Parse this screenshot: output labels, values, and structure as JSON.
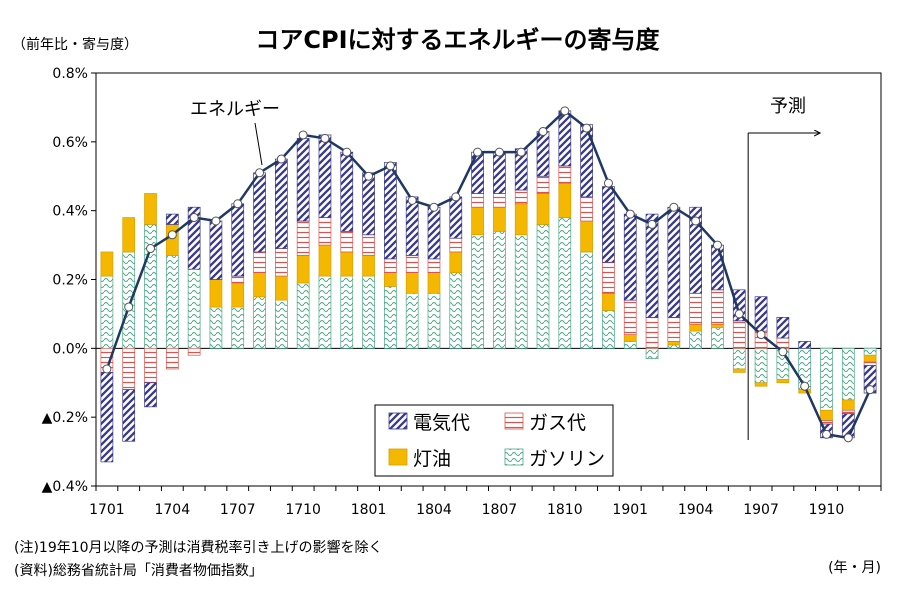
{
  "header": {
    "title": "コアCPIに対するエネルギーの寄与度",
    "y_unit": "（前年比・寄与度）"
  },
  "footer": {
    "note": "(注)19年10月以降の予測は消費税率引き上げの影響を除く",
    "source": "(資料)総務省統計局「消費者物価指数」",
    "x_unit": "(年・月)"
  },
  "chart_data": {
    "type": "bar",
    "stacked": true,
    "title": "コアCPIに対するエネルギーの寄与度",
    "ylim": [
      -0.4,
      0.8
    ],
    "y_ticks": [
      0.8,
      0.6,
      0.4,
      0.2,
      0.0,
      -0.2,
      -0.4
    ],
    "y_tick_labels": [
      "0.8%",
      "0.6%",
      "0.4%",
      "0.2%",
      "0.0%",
      "▲0.2%",
      "▲0.4%"
    ],
    "categories": [
      "1701",
      "1702",
      "1703",
      "1704",
      "1705",
      "1706",
      "1707",
      "1708",
      "1709",
      "1710",
      "1711",
      "1712",
      "1801",
      "1802",
      "1803",
      "1804",
      "1805",
      "1806",
      "1807",
      "1808",
      "1809",
      "1810",
      "1811",
      "1812",
      "1901",
      "1902",
      "1903",
      "1904",
      "1905",
      "1906",
      "1907",
      "1908",
      "1909",
      "1910",
      "1911",
      "1912"
    ],
    "x_tick_labels": [
      "1701",
      "1704",
      "1707",
      "1710",
      "1801",
      "1804",
      "1807",
      "1810",
      "1901",
      "1904",
      "1907",
      "1910"
    ],
    "x_tick_indices": [
      0,
      3,
      6,
      9,
      12,
      15,
      18,
      21,
      24,
      27,
      30,
      33
    ],
    "series": [
      {
        "name": "ガソリン",
        "color": "#8fd4b6",
        "pattern": "wave",
        "values": [
          0.21,
          0.28,
          0.36,
          0.27,
          0.23,
          0.12,
          0.12,
          0.15,
          0.14,
          0.19,
          0.21,
          0.21,
          0.21,
          0.18,
          0.16,
          0.16,
          0.22,
          0.33,
          0.34,
          0.33,
          0.36,
          0.38,
          0.28,
          0.11,
          0.02,
          -0.03,
          0.01,
          0.05,
          0.06,
          -0.06,
          -0.1,
          -0.09,
          -0.12,
          -0.18,
          -0.15,
          -0.02
        ]
      },
      {
        "name": "灯油",
        "color": "#f5b800",
        "pattern": "solid",
        "values": [
          0.07,
          0.1,
          0.09,
          0.09,
          0.0,
          0.08,
          0.07,
          0.07,
          0.07,
          0.08,
          0.09,
          0.07,
          0.06,
          0.04,
          0.06,
          0.06,
          0.06,
          0.08,
          0.07,
          0.09,
          0.09,
          0.1,
          0.09,
          0.05,
          0.02,
          0.0,
          0.01,
          0.02,
          0.01,
          -0.01,
          -0.01,
          -0.01,
          -0.01,
          -0.03,
          -0.03,
          -0.02
        ]
      },
      {
        "name": "ガス代",
        "color": "#d9544f",
        "pattern": "hline",
        "values": [
          -0.07,
          -0.12,
          -0.1,
          -0.06,
          -0.02,
          0.0,
          0.02,
          0.06,
          0.08,
          0.1,
          0.08,
          0.06,
          0.06,
          0.04,
          0.05,
          0.04,
          0.04,
          0.04,
          0.04,
          0.04,
          0.05,
          0.05,
          0.07,
          0.09,
          0.1,
          0.09,
          0.07,
          0.09,
          0.1,
          0.08,
          0.05,
          0.03,
          0.0,
          -0.01,
          -0.01,
          -0.01
        ]
      },
      {
        "name": "電気代",
        "color": "#3a3a8a",
        "pattern": "diag",
        "values": [
          -0.26,
          -0.15,
          -0.07,
          0.03,
          0.18,
          0.17,
          0.21,
          0.23,
          0.26,
          0.24,
          0.24,
          0.23,
          0.18,
          0.28,
          0.17,
          0.15,
          0.12,
          0.12,
          0.12,
          0.12,
          0.13,
          0.16,
          0.21,
          0.22,
          0.25,
          0.3,
          0.32,
          0.25,
          0.13,
          0.09,
          0.1,
          0.06,
          0.02,
          -0.04,
          -0.07,
          -0.08
        ]
      }
    ],
    "line": {
      "name": "エネルギー",
      "color": "#1f3864",
      "values": [
        -0.06,
        0.12,
        0.29,
        0.33,
        0.38,
        0.37,
        0.42,
        0.51,
        0.55,
        0.62,
        0.61,
        0.57,
        0.5,
        0.53,
        0.43,
        0.41,
        0.44,
        0.57,
        0.57,
        0.57,
        0.63,
        0.69,
        0.64,
        0.48,
        0.39,
        0.36,
        0.41,
        0.37,
        0.3,
        0.1,
        0.04,
        -0.01,
        -0.11,
        -0.25,
        -0.26,
        -0.12
      ]
    },
    "annotations": {
      "line_label": "エネルギー",
      "forecast_label": "予測",
      "forecast_from_index": 30
    },
    "legend_position": "bottom-center",
    "grid": false
  }
}
